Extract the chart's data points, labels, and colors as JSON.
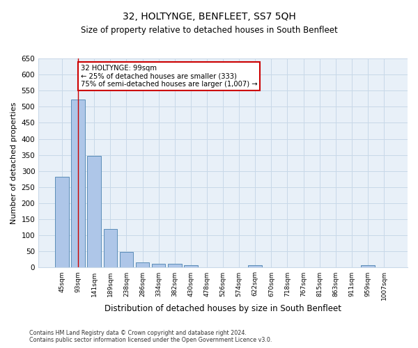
{
  "title": "32, HOLTYNGE, BENFLEET, SS7 5QH",
  "subtitle": "Size of property relative to detached houses in South Benfleet",
  "xlabel": "Distribution of detached houses by size in South Benfleet",
  "ylabel": "Number of detached properties",
  "categories": [
    "45sqm",
    "93sqm",
    "141sqm",
    "189sqm",
    "238sqm",
    "286sqm",
    "334sqm",
    "382sqm",
    "430sqm",
    "478sqm",
    "526sqm",
    "574sqm",
    "622sqm",
    "670sqm",
    "718sqm",
    "767sqm",
    "815sqm",
    "863sqm",
    "911sqm",
    "959sqm",
    "1007sqm"
  ],
  "values": [
    283,
    523,
    347,
    120,
    49,
    17,
    11,
    11,
    7,
    0,
    0,
    0,
    8,
    0,
    0,
    0,
    0,
    0,
    0,
    7,
    0
  ],
  "bar_color": "#aec6e8",
  "bar_edge_color": "#5b8db8",
  "vline_x": 1.0,
  "vline_color": "#cc0000",
  "annotation_text": "32 HOLTYNGE: 99sqm\n← 25% of detached houses are smaller (333)\n75% of semi-detached houses are larger (1,007) →",
  "annotation_box_color": "#ffffff",
  "annotation_box_edge": "#cc0000",
  "ylim": [
    0,
    650
  ],
  "yticks": [
    0,
    50,
    100,
    150,
    200,
    250,
    300,
    350,
    400,
    450,
    500,
    550,
    600,
    650
  ],
  "footer_line1": "Contains HM Land Registry data © Crown copyright and database right 2024.",
  "footer_line2": "Contains public sector information licensed under the Open Government Licence v3.0.",
  "grid_color": "#c8d8e8",
  "background_color": "#e8f0f8"
}
